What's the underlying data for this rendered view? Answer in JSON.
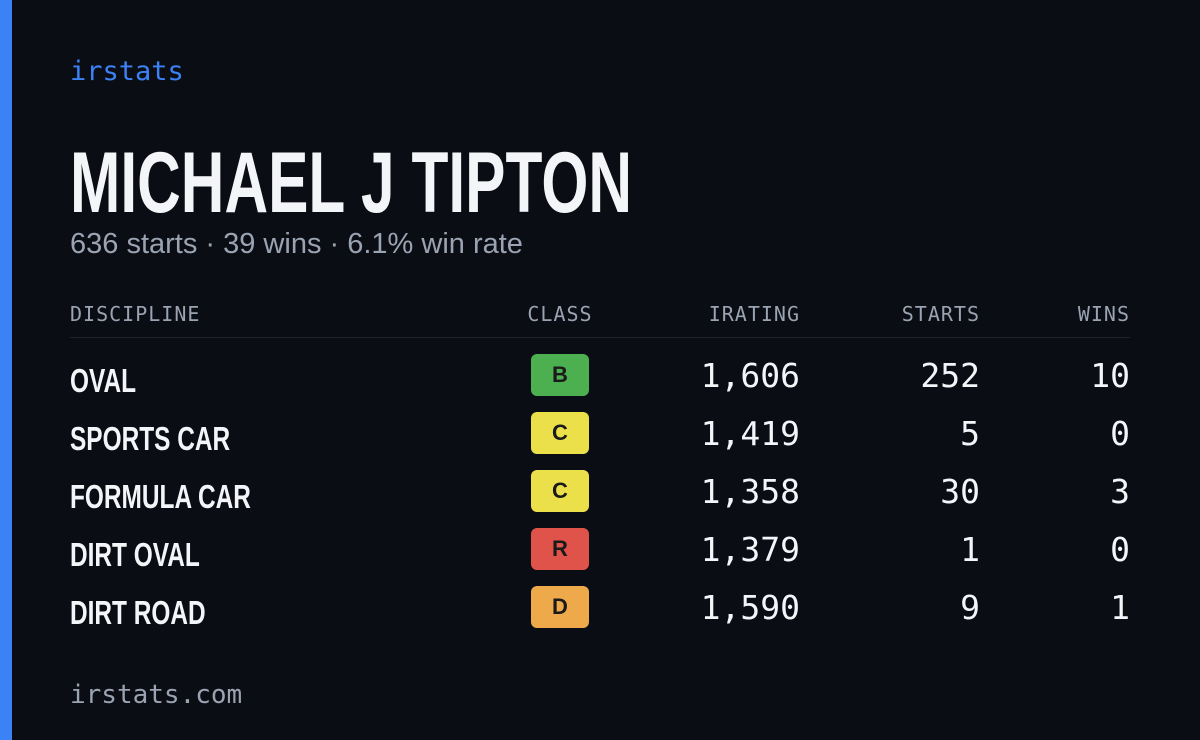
{
  "brand": "irstats",
  "name": "MICHAEL J TIPTON",
  "summary": "636 starts · 39 wins · 6.1% win rate",
  "table": {
    "headers": [
      "DISCIPLINE",
      "CLASS",
      "IRATING",
      "STARTS",
      "WINS"
    ],
    "rows": [
      {
        "discipline": "OVAL",
        "class": "B",
        "class_color": "#4caf50",
        "irating": "1,606",
        "starts": "252",
        "wins": "10"
      },
      {
        "discipline": "SPORTS CAR",
        "class": "C",
        "class_color": "#ece04a",
        "irating": "1,419",
        "starts": "5",
        "wins": "0"
      },
      {
        "discipline": "FORMULA CAR",
        "class": "C",
        "class_color": "#ece04a",
        "irating": "1,358",
        "starts": "30",
        "wins": "3"
      },
      {
        "discipline": "DIRT OVAL",
        "class": "R",
        "class_color": "#e0534a",
        "irating": "1,379",
        "starts": "1",
        "wins": "0"
      },
      {
        "discipline": "DIRT ROAD",
        "class": "D",
        "class_color": "#eeaa4a",
        "irating": "1,590",
        "starts": "9",
        "wins": "1"
      }
    ]
  },
  "footer": "irstats.com"
}
